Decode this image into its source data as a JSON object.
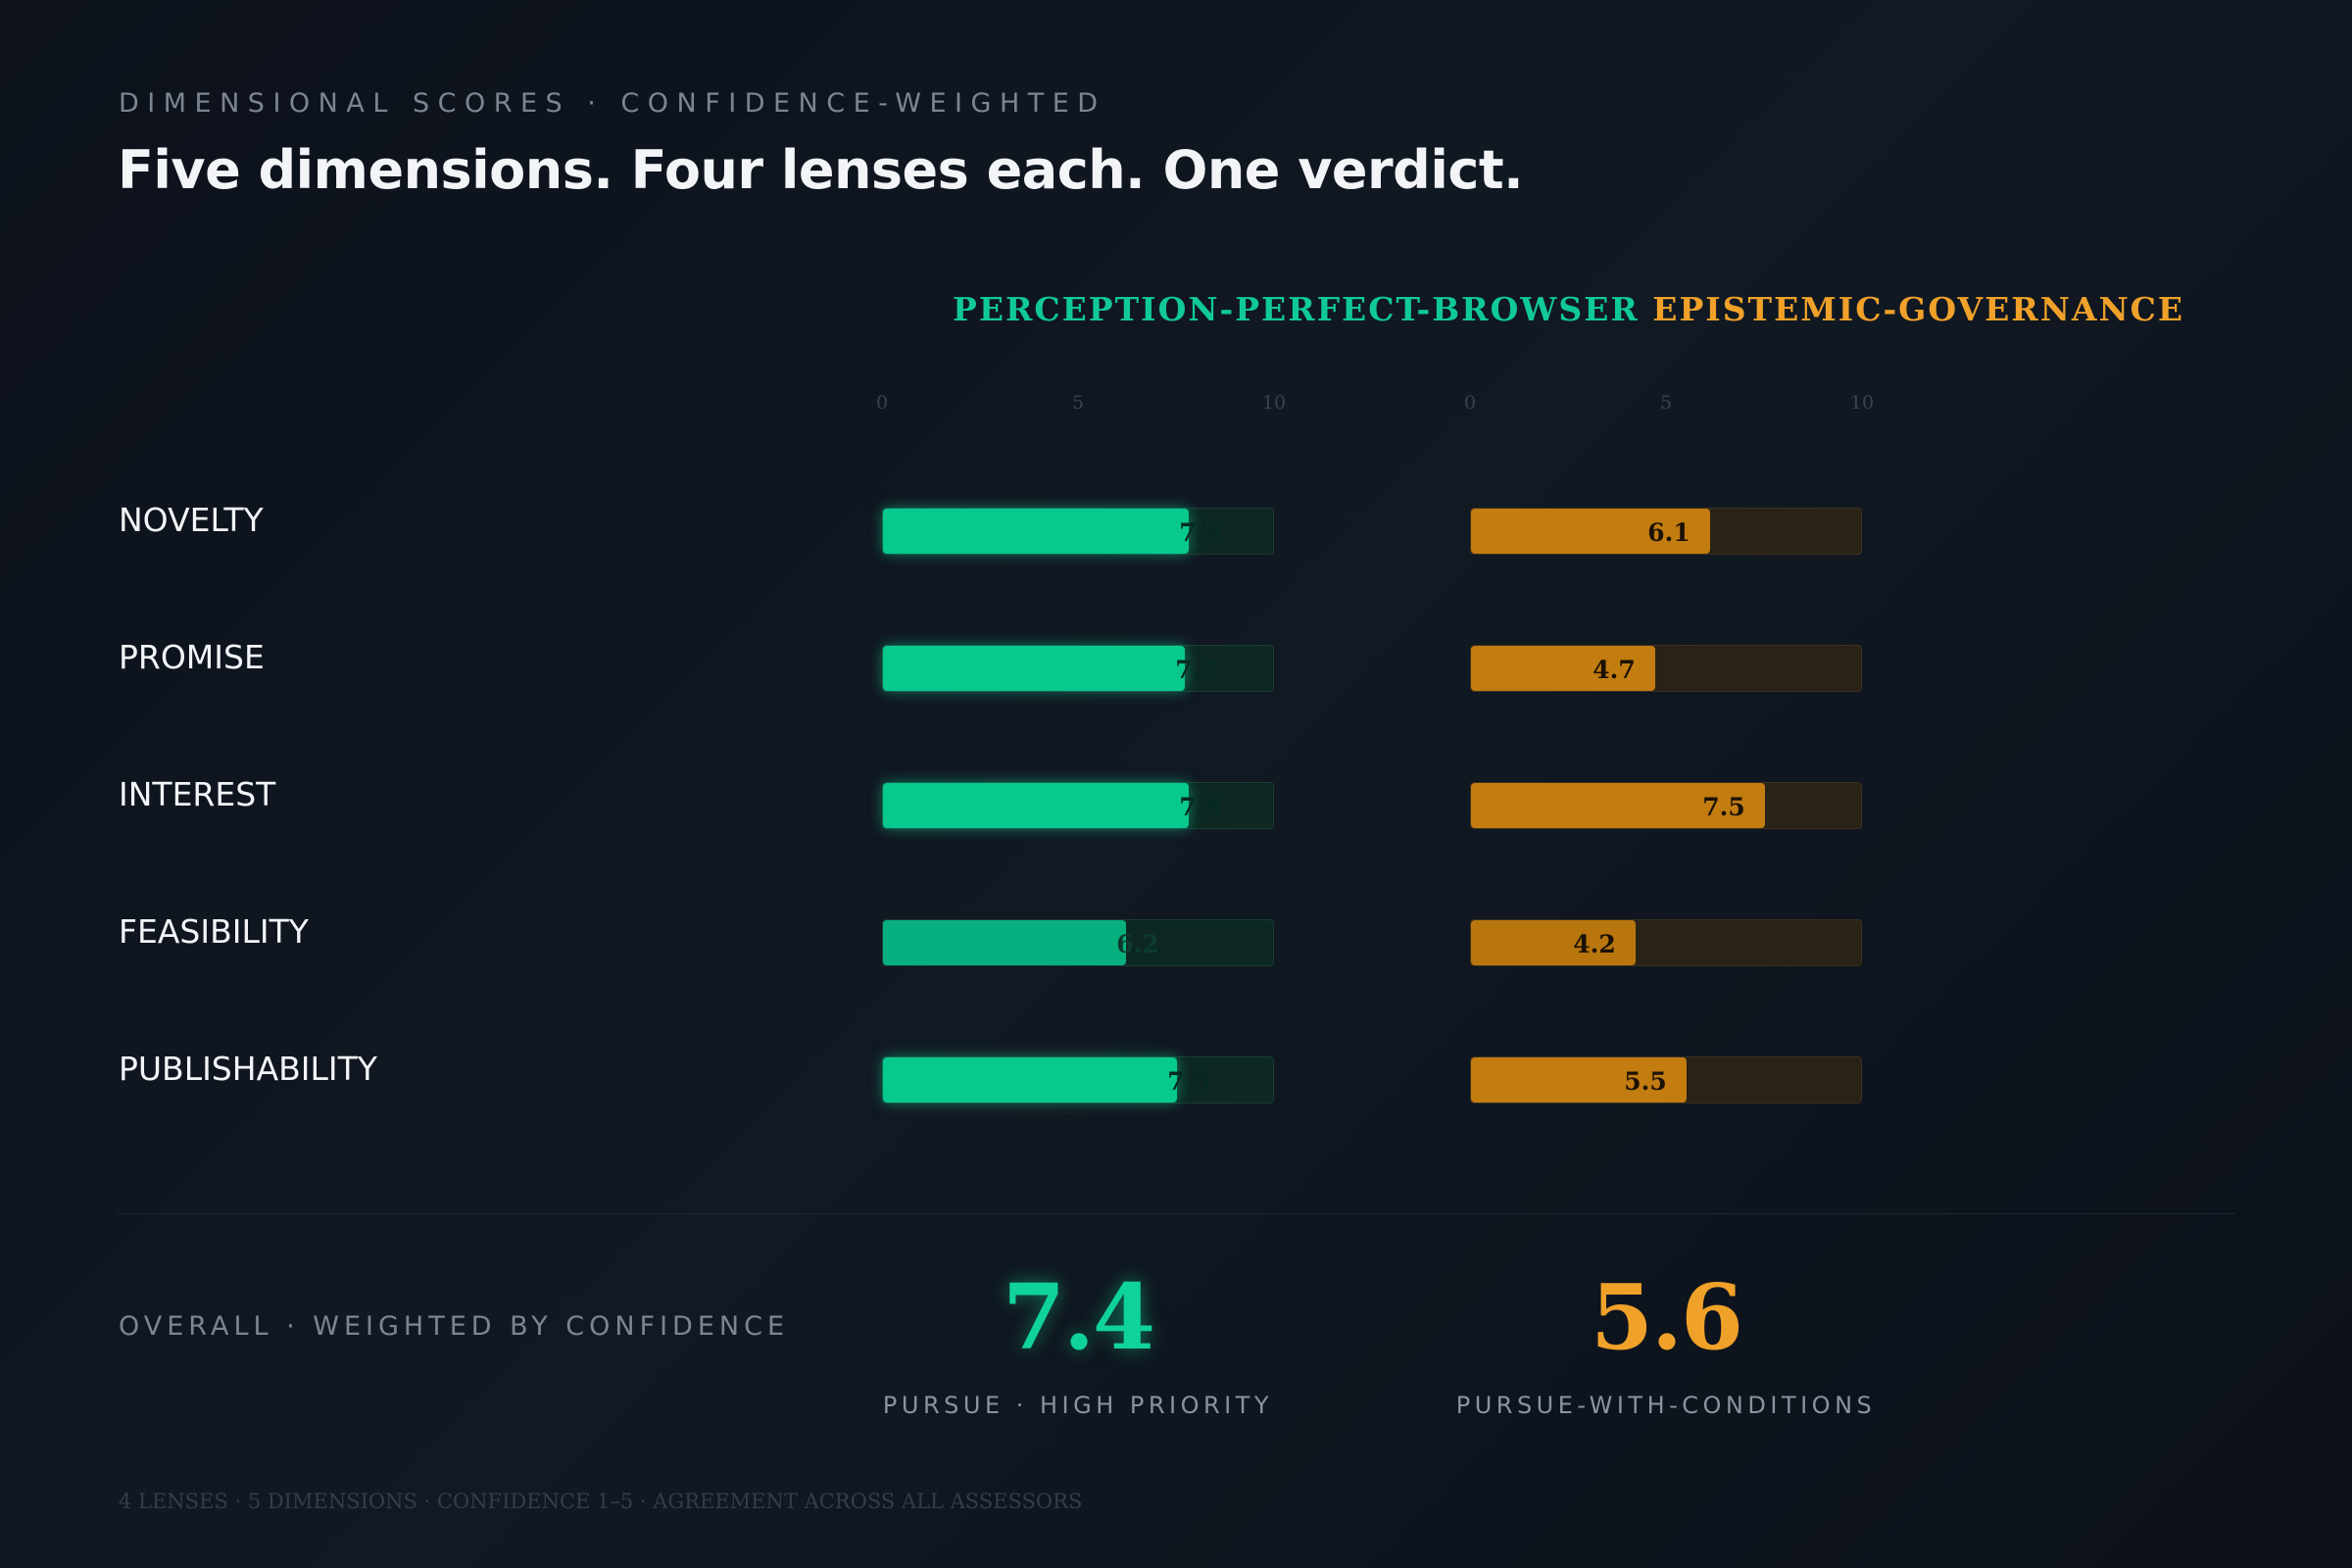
{
  "header": {
    "eyebrow": "DIMENSIONAL SCORES · CONFIDENCE-WEIGHTED",
    "title": "Five dimensions. Four lenses each. One verdict."
  },
  "colors": {
    "series_a": "#07c98e",
    "series_b": "#c27c10",
    "series_a_title": "#10c99a",
    "series_b_title": "#f0a12a",
    "background": "#0c111a"
  },
  "chart_data": {
    "type": "bar",
    "orientation": "horizontal",
    "categories": [
      "NOVELTY",
      "PROMISE",
      "INTEREST",
      "FEASIBILITY",
      "PUBLISHABILITY"
    ],
    "series": [
      {
        "name": "PERCEPTION-PERFECT-BROWSER",
        "values": [
          7.8,
          7.7,
          7.8,
          6.2,
          7.5
        ]
      },
      {
        "name": "EPISTEMIC-GOVERNANCE",
        "values": [
          6.1,
          4.7,
          7.5,
          4.2,
          5.5
        ]
      }
    ],
    "xlim": [
      0,
      10
    ],
    "ticks": [
      "0",
      "5",
      "10"
    ],
    "grid": false,
    "legend": "top"
  },
  "overall": {
    "label": "OVERALL · WEIGHTED BY CONFIDENCE",
    "a": {
      "score": "7.4",
      "verdict": "PURSUE · HIGH PRIORITY"
    },
    "b": {
      "score": "5.6",
      "verdict": "PURSUE-WITH-CONDITIONS"
    }
  },
  "footnote": "4 LENSES · 5 DIMENSIONS · CONFIDENCE 1–5 · AGREEMENT ACROSS ALL ASSESSORS"
}
